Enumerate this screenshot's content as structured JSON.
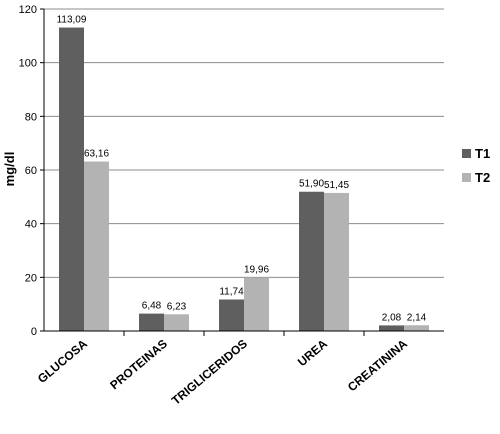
{
  "chart_data": {
    "type": "bar",
    "title": "",
    "xlabel": "",
    "ylabel": "mg/dl",
    "ylim": [
      0,
      120
    ],
    "yticks": [
      0,
      20,
      40,
      60,
      80,
      100,
      120
    ],
    "grid": true,
    "legend_position": "right",
    "categories": [
      "GLUCOSA",
      "PROTEINAS",
      "TRIGLICERIDOS",
      "UREA",
      "CREATININA"
    ],
    "series": [
      {
        "name": "T1",
        "color": "#5f5f5f",
        "values": [
          113.09,
          6.48,
          11.74,
          51.9,
          2.08
        ],
        "labels": [
          "113,09",
          "6,48",
          "11,74",
          "51,90",
          "2,08"
        ]
      },
      {
        "name": "T2",
        "color": "#b3b3b3",
        "values": [
          63.16,
          6.23,
          19.96,
          51.45,
          2.14
        ],
        "labels": [
          "63,16",
          "6,23",
          "19,96",
          "51,45",
          "2,14"
        ]
      }
    ]
  }
}
